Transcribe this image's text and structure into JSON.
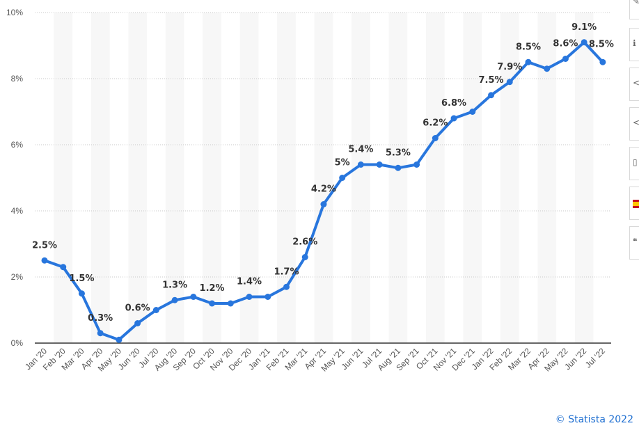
{
  "chart_data": {
    "type": "line",
    "categories": [
      "Jan '20",
      "Feb '20",
      "Mar '20",
      "Apr '20",
      "May '20",
      "Jun '20",
      "Jul '20",
      "Aug '20",
      "Sep '20",
      "Oct '20",
      "Nov '20",
      "Dec '20",
      "Jan '21",
      "Feb '21",
      "Mar '21",
      "Apr '21",
      "May '21",
      "Jun '21",
      "Jul '21",
      "Aug '21",
      "Sep '21",
      "Oct '21",
      "Nov '21",
      "Dec '21",
      "Jan '22",
      "Feb '22",
      "Mar '22",
      "Apr '22",
      "May '22",
      "Jun '22",
      "Jul '22"
    ],
    "series": [
      {
        "values": [
          2.5,
          2.3,
          1.5,
          0.3,
          0.1,
          0.6,
          1.0,
          1.3,
          1.4,
          1.2,
          1.2,
          1.4,
          1.4,
          1.7,
          2.6,
          4.2,
          5.0,
          5.4,
          5.4,
          5.3,
          5.4,
          6.2,
          6.8,
          7.0,
          7.5,
          7.9,
          8.5,
          8.3,
          8.6,
          9.1,
          8.5
        ]
      }
    ],
    "data_labels": [
      {
        "index": 0,
        "text": "2.5%"
      },
      {
        "index": 2,
        "text": "1.5%"
      },
      {
        "index": 3,
        "text": "0.3%"
      },
      {
        "index": 5,
        "text": "0.6%"
      },
      {
        "index": 7,
        "text": "1.3%"
      },
      {
        "index": 9,
        "text": "1.2%"
      },
      {
        "index": 11,
        "text": "1.4%"
      },
      {
        "index": 13,
        "text": "1.7%"
      },
      {
        "index": 14,
        "text": "2.6%"
      },
      {
        "index": 15,
        "text": "4.2%"
      },
      {
        "index": 16,
        "text": "5%"
      },
      {
        "index": 17,
        "text": "5.4%"
      },
      {
        "index": 19,
        "text": "5.3%"
      },
      {
        "index": 21,
        "text": "6.2%"
      },
      {
        "index": 22,
        "text": "6.8%"
      },
      {
        "index": 24,
        "text": "7.5%"
      },
      {
        "index": 25,
        "text": "7.9%"
      },
      {
        "index": 26,
        "text": "8.5%"
      },
      {
        "index": 28,
        "text": "8.6%"
      },
      {
        "index": 29,
        "text": "9.1%"
      },
      {
        "index": 30,
        "text": "8.5%"
      }
    ],
    "y_ticks": [
      "0%",
      "2%",
      "4%",
      "6%",
      "8%",
      "10%"
    ],
    "ylim": [
      0,
      10
    ],
    "grid": true,
    "line_color": "#2876dd",
    "band_color": "#f7f7f7",
    "grid_color": "#c8c8c8"
  },
  "credit": "© Statista 2022",
  "sidebar": {
    "icons": [
      "bell-icon",
      "info-icon",
      "share-icon",
      "share-alt-icon",
      "print-icon",
      "flag-icon",
      "quote-icon"
    ]
  }
}
